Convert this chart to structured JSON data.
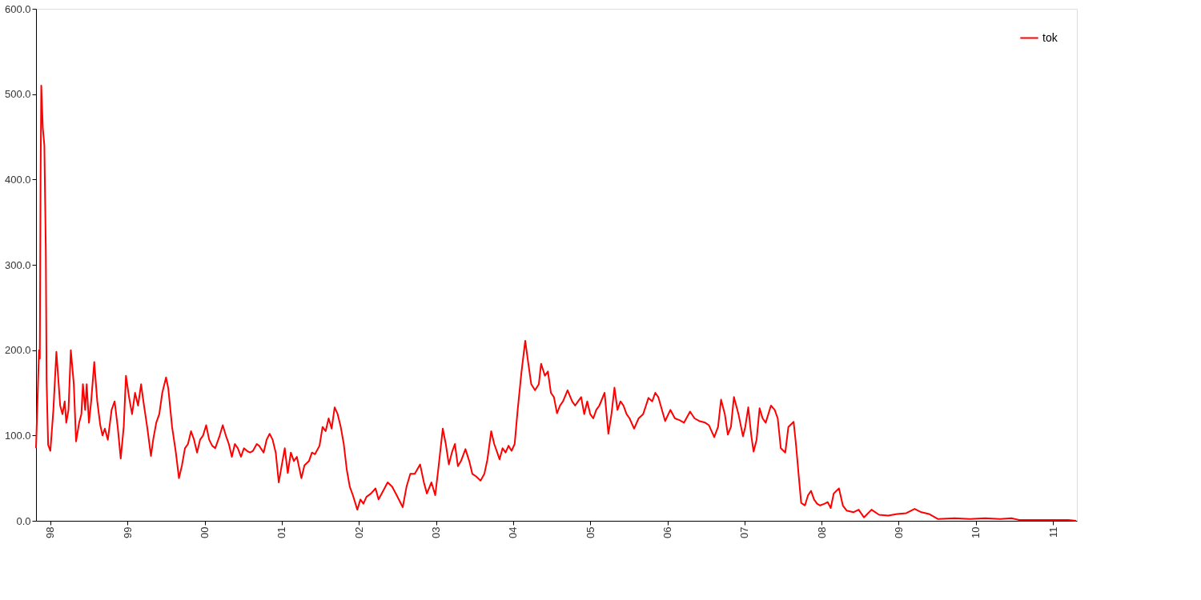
{
  "chart_data": {
    "type": "line",
    "legend": "top right",
    "grid": false,
    "xlim": [
      1997.814,
      2011.31
    ],
    "xticks": [
      {
        "value": 1998,
        "label": "98"
      },
      {
        "value": 1999,
        "label": "99"
      },
      {
        "value": 2000,
        "label": "00"
      },
      {
        "value": 2001,
        "label": "01"
      },
      {
        "value": 2002,
        "label": "02"
      },
      {
        "value": 2003,
        "label": "03"
      },
      {
        "value": 2004,
        "label": "04"
      },
      {
        "value": 2005,
        "label": "05"
      },
      {
        "value": 2006,
        "label": "06"
      },
      {
        "value": 2007,
        "label": "07"
      },
      {
        "value": 2008,
        "label": "08"
      },
      {
        "value": 2009,
        "label": "09"
      },
      {
        "value": 2010,
        "label": "10"
      },
      {
        "value": 2011,
        "label": "11"
      }
    ],
    "ylim": [
      0,
      600
    ],
    "yticks": [
      {
        "value": 0,
        "label": "0.0"
      },
      {
        "value": 100,
        "label": "100.0"
      },
      {
        "value": 200,
        "label": "200.0"
      },
      {
        "value": 300,
        "label": "300.0"
      },
      {
        "value": 400,
        "label": "400.0"
      },
      {
        "value": 500,
        "label": "500.0"
      },
      {
        "value": 600,
        "label": "600.0"
      }
    ],
    "x": [
      1997.814,
      1997.833,
      1997.853,
      1997.863,
      1997.873,
      1997.882,
      1997.902,
      1997.922,
      1997.941,
      1997.951,
      1997.971,
      1998.0,
      1998.039,
      1998.078,
      1998.127,
      1998.157,
      1998.186,
      1998.206,
      1998.235,
      1998.265,
      1998.304,
      1998.333,
      1998.373,
      1998.402,
      1998.422,
      1998.451,
      1998.471,
      1998.5,
      1998.529,
      1998.569,
      1998.608,
      1998.647,
      1998.676,
      1998.706,
      1998.745,
      1998.794,
      1998.833,
      1998.873,
      1998.912,
      1998.951,
      1998.98,
      1999.02,
      1999.059,
      1999.098,
      1999.137,
      1999.176,
      1999.206,
      1999.255,
      1999.304,
      1999.333,
      1999.373,
      1999.412,
      1999.451,
      1999.5,
      1999.529,
      1999.578,
      1999.627,
      1999.667,
      1999.706,
      1999.745,
      1999.784,
      1999.824,
      1999.863,
      1999.902,
      1999.941,
      1999.98,
      2000.02,
      2000.059,
      2000.098,
      2000.137,
      2000.196,
      2000.235,
      2000.275,
      2000.314,
      2000.353,
      2000.392,
      2000.431,
      2000.471,
      2000.51,
      2000.549,
      2000.588,
      2000.627,
      2000.676,
      2000.706,
      2000.765,
      2000.804,
      2000.843,
      2000.882,
      2000.922,
      2000.961,
      2001.0,
      2001.039,
      2001.078,
      2001.118,
      2001.157,
      2001.196,
      2001.255,
      2001.294,
      2001.353,
      2001.392,
      2001.431,
      2001.49,
      2001.529,
      2001.569,
      2001.608,
      2001.647,
      2001.686,
      2001.725,
      2001.765,
      2001.804,
      2001.843,
      2001.882,
      2001.922,
      2001.98,
      2002.02,
      2002.059,
      2002.098,
      2002.157,
      2002.216,
      2002.255,
      2002.314,
      2002.373,
      2002.431,
      2002.49,
      2002.569,
      2002.618,
      2002.667,
      2002.725,
      2002.794,
      2002.843,
      2002.882,
      2002.941,
      2002.99,
      2003.029,
      2003.088,
      2003.127,
      2003.167,
      2003.206,
      2003.245,
      2003.284,
      2003.324,
      2003.382,
      2003.431,
      2003.471,
      2003.52,
      2003.578,
      2003.627,
      2003.667,
      2003.716,
      2003.755,
      2003.794,
      2003.824,
      2003.863,
      2003.902,
      2003.941,
      2003.98,
      2004.02,
      2004.059,
      2004.108,
      2004.157,
      2004.196,
      2004.235,
      2004.284,
      2004.333,
      2004.363,
      2004.412,
      2004.451,
      2004.49,
      2004.529,
      2004.569,
      2004.608,
      2004.647,
      2004.706,
      2004.765,
      2004.804,
      2004.843,
      2004.882,
      2004.922,
      2004.961,
      2005.0,
      2005.039,
      2005.078,
      2005.118,
      2005.186,
      2005.235,
      2005.275,
      2005.314,
      2005.353,
      2005.392,
      2005.431,
      2005.471,
      2005.51,
      2005.569,
      2005.627,
      2005.686,
      2005.755,
      2005.804,
      2005.843,
      2005.882,
      2005.971,
      2006.039,
      2006.098,
      2006.157,
      2006.216,
      2006.294,
      2006.353,
      2006.412,
      2006.49,
      2006.539,
      2006.608,
      2006.657,
      2006.696,
      2006.745,
      2006.784,
      2006.824,
      2006.863,
      2006.922,
      2006.98,
      2007.01,
      2007.049,
      2007.088,
      2007.118,
      2007.157,
      2007.196,
      2007.235,
      2007.275,
      2007.343,
      2007.392,
      2007.431,
      2007.471,
      2007.529,
      2007.569,
      2007.637,
      2007.667,
      2007.706,
      2007.735,
      2007.784,
      2007.824,
      2007.863,
      2007.902,
      2007.941,
      2007.98,
      2008.039,
      2008.078,
      2008.118,
      2008.157,
      2008.225,
      2008.275,
      2008.324,
      2008.412,
      2008.48,
      2008.549,
      2008.647,
      2008.745,
      2008.863,
      2008.98,
      2009.098,
      2009.206,
      2009.294,
      2009.392,
      2009.51,
      2009.725,
      2009.922,
      2010.118,
      2010.314,
      2010.461,
      2010.559,
      2010.804,
      2011.0,
      2011.196,
      2011.3
    ],
    "series": [
      {
        "name": "tok",
        "color": "#ff0000",
        "values": [
          85,
          140,
          200,
          190,
          400,
          510,
          460,
          440,
          316,
          164,
          89,
          82,
          130,
          198,
          135,
          125,
          140,
          115,
          130,
          200,
          160,
          93,
          115,
          125,
          160,
          130,
          160,
          115,
          140,
          186,
          140,
          112,
          100,
          108,
          95,
          130,
          140,
          110,
          73,
          110,
          170,
          145,
          125,
          150,
          135,
          160,
          140,
          110,
          76,
          95,
          115,
          125,
          150,
          168,
          155,
          110,
          80,
          50,
          65,
          85,
          90,
          105,
          95,
          80,
          95,
          100,
          112,
          95,
          88,
          85,
          100,
          112,
          100,
          90,
          75,
          90,
          85,
          75,
          85,
          82,
          80,
          82,
          90,
          88,
          80,
          95,
          102,
          95,
          80,
          45,
          65,
          85,
          56,
          80,
          70,
          75,
          50,
          65,
          70,
          80,
          78,
          88,
          110,
          105,
          120,
          108,
          133,
          125,
          110,
          90,
          60,
          40,
          30,
          13,
          25,
          20,
          28,
          32,
          38,
          25,
          35,
          45,
          40,
          30,
          16,
          40,
          55,
          55,
          66,
          45,
          32,
          45,
          30,
          60,
          108,
          90,
          66,
          80,
          90,
          64,
          70,
          84,
          70,
          55,
          52,
          47,
          55,
          72,
          105,
          90,
          80,
          72,
          85,
          80,
          88,
          82,
          90,
          130,
          174,
          211,
          185,
          160,
          153,
          160,
          184,
          170,
          175,
          150,
          145,
          126,
          135,
          140,
          153,
          140,
          135,
          140,
          145,
          125,
          140,
          125,
          120,
          130,
          135,
          150,
          102,
          125,
          156,
          130,
          140,
          135,
          125,
          120,
          108,
          120,
          125,
          144,
          140,
          150,
          145,
          117,
          130,
          120,
          118,
          115,
          128,
          120,
          117,
          115,
          112,
          98,
          110,
          142,
          125,
          101,
          110,
          145,
          125,
          99,
          110,
          133,
          100,
          81,
          95,
          132,
          120,
          115,
          135,
          130,
          120,
          85,
          80,
          110,
          116,
          90,
          50,
          21,
          18,
          30,
          35,
          25,
          20,
          18,
          20,
          22,
          15,
          32,
          38,
          18,
          12,
          10,
          13,
          4,
          13,
          7,
          6,
          8,
          9,
          14,
          10,
          8,
          2,
          3,
          2,
          3,
          2,
          3,
          1,
          1,
          1,
          1,
          0
        ]
      }
    ]
  }
}
